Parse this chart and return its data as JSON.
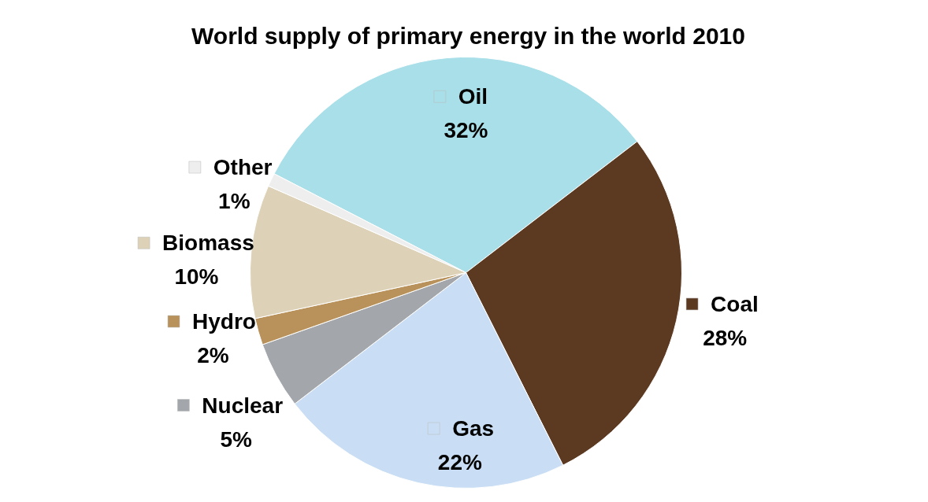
{
  "chart_data": {
    "type": "pie",
    "title": "World supply of primary energy in the world 2010",
    "categories": [
      "Oil",
      "Coal",
      "Gas",
      "Nuclear",
      "Hydro",
      "Biomass",
      "Other"
    ],
    "values": [
      32,
      28,
      22,
      5,
      2,
      10,
      1
    ],
    "value_labels": [
      "32%",
      "28%",
      "22%",
      "5%",
      "2%",
      "10%",
      "1%"
    ],
    "colors": [
      "#a9dfe8",
      "#5c3a22",
      "#c9def4",
      "#a3a6aa",
      "#b8925a",
      "#ddd2b8",
      "#eeeeee"
    ],
    "legend": "center"
  }
}
